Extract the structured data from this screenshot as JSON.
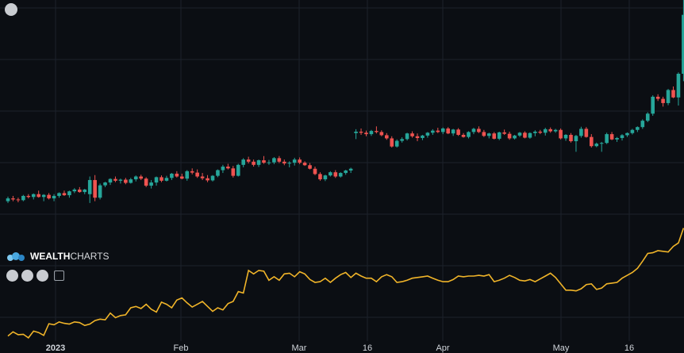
{
  "brand": {
    "part1": "WEALTH",
    "part2": "CHARTS"
  },
  "toolbar": {
    "icons": [
      "expand-icon",
      "arrow-down-icon",
      "arrow-up-icon",
      "plus-square-icon"
    ]
  },
  "colors": {
    "background": "#0b0e13",
    "grid": "#1c222b",
    "up": "#26a69a",
    "down": "#ef5350",
    "line": "#f0b429",
    "axis_text": "#d0d4da"
  },
  "chart_data": {
    "type": "candlestick",
    "x_tick_labels": [
      "2023",
      "Feb",
      "Mar",
      "16",
      "Apr",
      "May",
      "16"
    ],
    "ylim": [
      0,
      100
    ],
    "candles": [
      [
        43,
        44.3,
        42.5,
        43.8
      ],
      [
        43.8,
        44.5,
        43,
        43.5
      ],
      [
        43.5,
        44,
        42.7,
        43.3
      ],
      [
        43.3,
        44.8,
        43,
        44.5
      ],
      [
        44.5,
        45,
        43.8,
        44.2
      ],
      [
        44.2,
        45.2,
        43.5,
        45
      ],
      [
        45,
        46,
        44,
        44.2
      ],
      [
        44.2,
        45,
        43,
        44.8
      ],
      [
        44.8,
        45.3,
        43.5,
        43.8
      ],
      [
        43.8,
        45,
        43,
        44.5
      ],
      [
        44.5,
        45.5,
        44,
        45.3
      ],
      [
        45.3,
        46,
        44.5,
        44.7
      ],
      [
        44.7,
        46,
        44,
        45.8
      ],
      [
        45.8,
        46.7,
        45.3,
        46.3
      ],
      [
        46.3,
        47,
        45.4,
        45.6
      ],
      [
        45.6,
        46.5,
        45,
        46.3
      ],
      [
        45,
        50,
        42.5,
        49
      ],
      [
        49,
        50.4,
        43,
        44
      ],
      [
        44,
        48,
        43.5,
        47.5
      ],
      [
        47.5,
        48.5,
        47,
        48.3
      ],
      [
        48.3,
        49.5,
        47.6,
        49.3
      ],
      [
        49.3,
        50,
        48.4,
        48.8
      ],
      [
        48.8,
        49.4,
        48,
        49.1
      ],
      [
        49.1,
        49.6,
        47.8,
        48.2
      ],
      [
        48.2,
        49.6,
        48,
        49.2
      ],
      [
        49.2,
        50.3,
        48.6,
        50
      ],
      [
        50,
        50.5,
        49,
        49.4
      ],
      [
        49.4,
        49.8,
        47,
        47.4
      ],
      [
        47.4,
        49,
        46.6,
        48.3
      ],
      [
        48.3,
        50,
        47.4,
        49.8
      ],
      [
        49.8,
        50.3,
        48.4,
        48.8
      ],
      [
        48.8,
        50.2,
        48.6,
        49.6
      ],
      [
        49.6,
        51,
        49,
        50.8
      ],
      [
        50.8,
        51.5,
        49.7,
        50
      ],
      [
        50,
        50.8,
        49.2,
        49.4
      ],
      [
        49.4,
        51.8,
        48.8,
        51.5
      ],
      [
        51.5,
        52.3,
        50.6,
        51.1
      ],
      [
        51.1,
        52,
        49.6,
        50
      ],
      [
        50,
        51,
        49,
        49.5
      ],
      [
        49.5,
        50.4,
        48.4,
        48.9
      ],
      [
        48.9,
        50.4,
        48.6,
        50.2
      ],
      [
        50.2,
        52,
        49.8,
        51.8
      ],
      [
        51.8,
        53.3,
        51,
        52.8
      ],
      [
        52.8,
        53.6,
        52,
        52.3
      ],
      [
        52.3,
        53,
        49.7,
        50.2
      ],
      [
        50.2,
        53.6,
        50,
        53.3
      ],
      [
        53.3,
        55.2,
        52.6,
        54.8
      ],
      [
        54.8,
        55.6,
        53.7,
        54.2
      ],
      [
        54.2,
        54.8,
        52.8,
        53.3
      ],
      [
        53.3,
        54.8,
        52.7,
        54.6
      ],
      [
        54.6,
        55.8,
        53.6,
        53.9
      ],
      [
        53.9,
        54.7,
        53.3,
        54
      ],
      [
        54,
        55.5,
        53.5,
        55.2
      ],
      [
        55.2,
        55.8,
        53.8,
        54.2
      ],
      [
        54.2,
        54.8,
        53.2,
        53.7
      ],
      [
        53.7,
        54.3,
        52.6,
        53.9
      ],
      [
        53.9,
        55.3,
        53.1,
        54.8
      ],
      [
        54.8,
        55.4,
        53.5,
        53.9
      ],
      [
        53.9,
        54.3,
        53,
        53.2
      ],
      [
        53.2,
        53.8,
        52,
        52.2
      ],
      [
        52.2,
        52.8,
        50.4,
        50.7
      ],
      [
        50.7,
        51.2,
        48.8,
        49.2
      ],
      [
        49.2,
        50.5,
        48.7,
        50.3
      ],
      [
        50.3,
        51.5,
        50,
        51.2
      ],
      [
        51.2,
        51.8,
        49.6,
        50
      ],
      [
        50,
        51.2,
        49.7,
        51
      ],
      [
        51,
        51.9,
        50.5,
        51.7
      ],
      [
        51.7,
        52.5,
        51,
        52.2
      ],
      [
        62.3,
        63.4,
        60.6,
        62.7
      ],
      [
        62.7,
        63.6,
        61.8,
        62.4
      ],
      [
        62.4,
        63,
        61.4,
        62
      ],
      [
        62,
        63.2,
        61.5,
        62.9
      ],
      [
        62.9,
        64.2,
        62.2,
        62.6
      ],
      [
        62.6,
        63.1,
        61.4,
        61.7
      ],
      [
        61.7,
        62.3,
        60.4,
        60.8
      ],
      [
        60.8,
        61.4,
        58.2,
        58.5
      ],
      [
        58.5,
        60.5,
        58.2,
        60.1
      ],
      [
        60.1,
        61.1,
        59.6,
        60.6
      ],
      [
        60.6,
        62.4,
        60.2,
        62.2
      ],
      [
        62.2,
        62.8,
        61,
        61.4
      ],
      [
        61.4,
        62.2,
        60,
        60.9
      ],
      [
        60.9,
        61.8,
        60.3,
        61.6
      ],
      [
        61.6,
        62.6,
        61,
        62.4
      ],
      [
        62.4,
        63.4,
        61.8,
        63
      ],
      [
        63,
        63.8,
        62.3,
        62.6
      ],
      [
        62.6,
        63.9,
        62,
        63.6
      ],
      [
        63.6,
        64,
        62,
        62.2
      ],
      [
        62.2,
        63.5,
        61.5,
        63.3
      ],
      [
        63.3,
        63.7,
        61.5,
        61.8
      ],
      [
        61.8,
        62.3,
        61,
        61.2
      ],
      [
        61.2,
        62.8,
        60.8,
        62.6
      ],
      [
        62.6,
        63.8,
        62,
        63.5
      ],
      [
        63.5,
        64.2,
        62.3,
        62.6
      ],
      [
        62.6,
        63.2,
        61.2,
        61.5
      ],
      [
        61.5,
        62.4,
        60.8,
        62.2
      ],
      [
        62.2,
        62.6,
        60.5,
        60.7
      ],
      [
        60.7,
        62.7,
        60.3,
        62.5
      ],
      [
        62.5,
        63.3,
        61.8,
        62.1
      ],
      [
        62.1,
        62.7,
        60.4,
        60.8
      ],
      [
        60.8,
        61.8,
        60.5,
        61.6
      ],
      [
        61.6,
        62.6,
        61.2,
        62.4
      ],
      [
        62.4,
        62.8,
        60.8,
        61
      ],
      [
        61,
        62.5,
        60.7,
        62.3
      ],
      [
        62.3,
        63.1,
        61.4,
        62.7
      ],
      [
        62.7,
        63.2,
        62,
        62.4
      ],
      [
        62.4,
        63.8,
        61.6,
        63.4
      ],
      [
        63.4,
        63.9,
        62.4,
        62.8
      ],
      [
        62.8,
        63.5,
        62.4,
        63.2
      ],
      [
        63.2,
        63.6,
        60.5,
        60.8
      ],
      [
        60.8,
        62,
        60.1,
        61.8
      ],
      [
        61.8,
        62.3,
        59.6,
        60
      ],
      [
        60,
        61.8,
        57,
        61.5
      ],
      [
        61.5,
        64.1,
        61,
        63.5
      ],
      [
        63.5,
        64,
        61,
        61.2
      ],
      [
        61.2,
        62,
        58.2,
        58.6
      ],
      [
        58.6,
        59.6,
        58.3,
        59.3
      ],
      [
        59.3,
        59.8,
        57,
        59.5
      ],
      [
        59.5,
        62.4,
        59.2,
        62
      ],
      [
        62,
        62.6,
        60.3,
        60.5
      ],
      [
        60.5,
        61.2,
        59.8,
        60.9
      ],
      [
        60.9,
        62,
        60.2,
        61.7
      ],
      [
        61.7,
        62.5,
        61.2,
        62.3
      ],
      [
        62.3,
        63.5,
        61.9,
        63.2
      ],
      [
        63.2,
        64.2,
        62.6,
        64
      ],
      [
        64,
        66.2,
        63.5,
        65.8
      ],
      [
        65.8,
        68.2,
        65.4,
        67.8
      ],
      [
        67.8,
        73,
        67.2,
        72.6
      ],
      [
        72.6,
        73.3,
        71.4,
        72
      ],
      [
        72,
        72.6,
        69.8,
        70.8
      ],
      [
        70.8,
        74.8,
        70.2,
        74.5
      ],
      [
        74.5,
        75.5,
        72.2,
        72.4
      ],
      [
        72.4,
        79.5,
        70.1,
        79.1
      ],
      [
        79.1,
        109,
        77,
        95.8
      ]
    ],
    "line": [
      4.8,
      6,
      5.2,
      5.3,
      4.3,
      6.2,
      5.8,
      5,
      8.3,
      8,
      8.8,
      8.4,
      8.2,
      8.8,
      8.6,
      7.8,
      8.2,
      9.2,
      9.6,
      9.4,
      11.3,
      10,
      10.6,
      10.8,
      12.8,
      13.2,
      12.6,
      13.8,
      12.4,
      11.6,
      14.4,
      13.8,
      12.8,
      15,
      15.6,
      14.2,
      13,
      13.8,
      14.6,
      13.2,
      11.8,
      12.8,
      12.2,
      14,
      14.6,
      17.4,
      17,
      23.4,
      22.4,
      23.4,
      23.2,
      20.6,
      21.6,
      20.6,
      22.4,
      22.6,
      21.6,
      23,
      22.4,
      20.8,
      20,
      20.2,
      21.2,
      20,
      21.2,
      22.2,
      22.8,
      21.4,
      22.6,
      21.8,
      21.2,
      21.2,
      20.2,
      21.6,
      22.2,
      21.6,
      20,
      20.2,
      20.6,
      21.2,
      21.4,
      21.6,
      21.8,
      21.2,
      20.6,
      20.2,
      20.2,
      20.8,
      21.8,
      21.6,
      21.8,
      21.8,
      22,
      21.8,
      22.2,
      20.2,
      20.6,
      21.2,
      22,
      21.4,
      20.6,
      20.4,
      20.8,
      20.2,
      21,
      21.8,
      22.6,
      21.4,
      19.6,
      17.8,
      17.8,
      17.6,
      18.2,
      19.4,
      19.6,
      18,
      18.4,
      19.6,
      19.8,
      20,
      21.2,
      22,
      22.8,
      24,
      26,
      28.2,
      28.4,
      29,
      28.8,
      28.6,
      30.2,
      31.2,
      35.4
    ]
  }
}
